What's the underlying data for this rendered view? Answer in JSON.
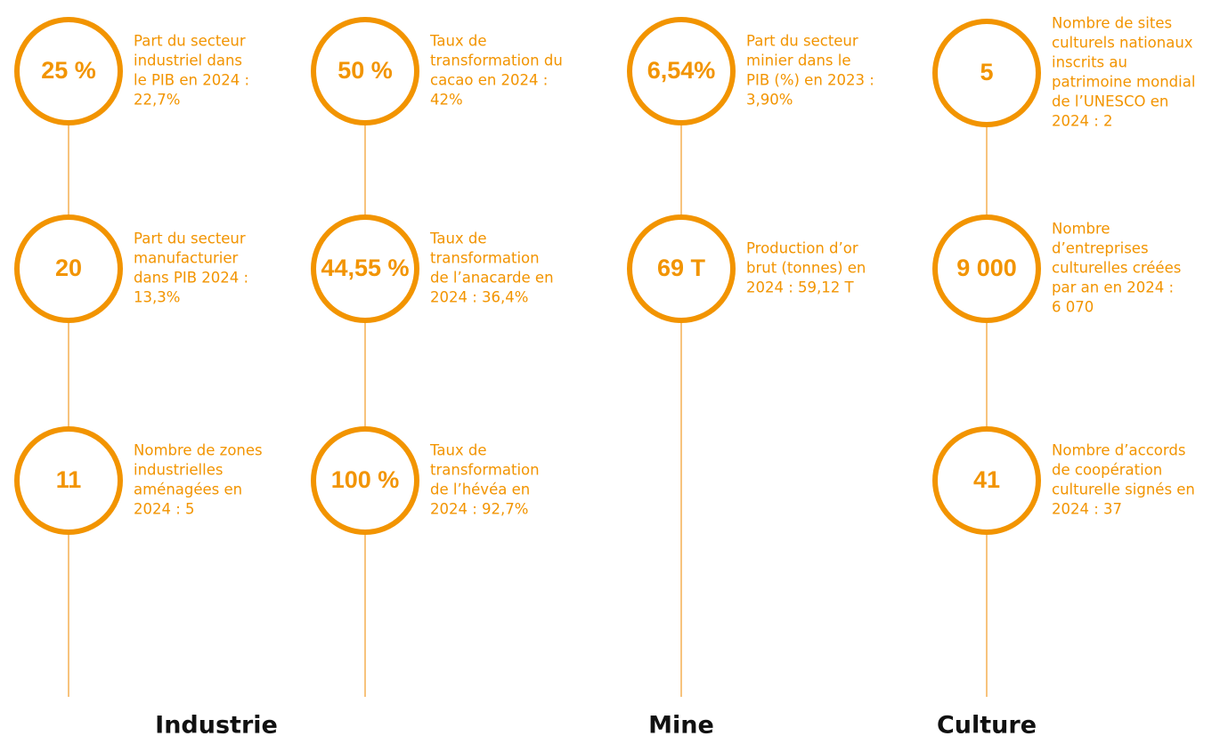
{
  "columns": [
    {
      "items": [
        {
          "value": "25 %",
          "text": [
            "Part du secteur",
            "industriel dans",
            "le PIB en 2024 :",
            "22,7%"
          ]
        },
        {
          "value": "20",
          "text": [
            "Part du secteur",
            "manufacturier",
            "dans PIB 2024 :",
            "13,3%"
          ]
        },
        {
          "value": "11",
          "text": [
            "Nombre de zones",
            "industrielles",
            "aménagées en",
            "2024 : 5"
          ]
        }
      ]
    },
    {
      "items": [
        {
          "value": "50 %",
          "text": [
            "Taux de",
            "transformation du",
            "cacao en 2024 :",
            "42%"
          ]
        },
        {
          "value": "44,55 %",
          "text": [
            "Taux de",
            "transformation",
            "de l’anacarde en",
            "2024 : 36,4%"
          ]
        },
        {
          "value": "100 %",
          "text": [
            "Taux de",
            "transformation",
            "de l’hévéa en",
            "2024 : 92,7%"
          ]
        }
      ]
    },
    {
      "items": [
        {
          "value": "6,54%",
          "text": [
            "Part du secteur",
            "minier dans le",
            "PIB (%) en 2023 :",
            "3,90%"
          ]
        },
        {
          "value": "69 T",
          "text": [
            "Production d’or",
            "brut (tonnes) en",
            "2024 : 59,12 T"
          ]
        }
      ]
    },
    {
      "items": [
        {
          "value": "5",
          "text": [
            "Nombre de sites",
            "culturels nationaux",
            "inscrits au",
            "patrimoine mondial",
            "de l’UNESCO en",
            "2024 : 2"
          ]
        },
        {
          "value": "9 000",
          "text": [
            "Nombre",
            "d’entreprises",
            "culturelles créées",
            "par an en 2024 :",
            "6 070"
          ]
        },
        {
          "value": "41",
          "text": [
            "Nombre d’accords",
            "de coopération",
            "culturelle signés en",
            "2024 : 37"
          ]
        }
      ]
    }
  ],
  "sections": [
    "Industrie",
    "Mine",
    "Culture"
  ]
}
